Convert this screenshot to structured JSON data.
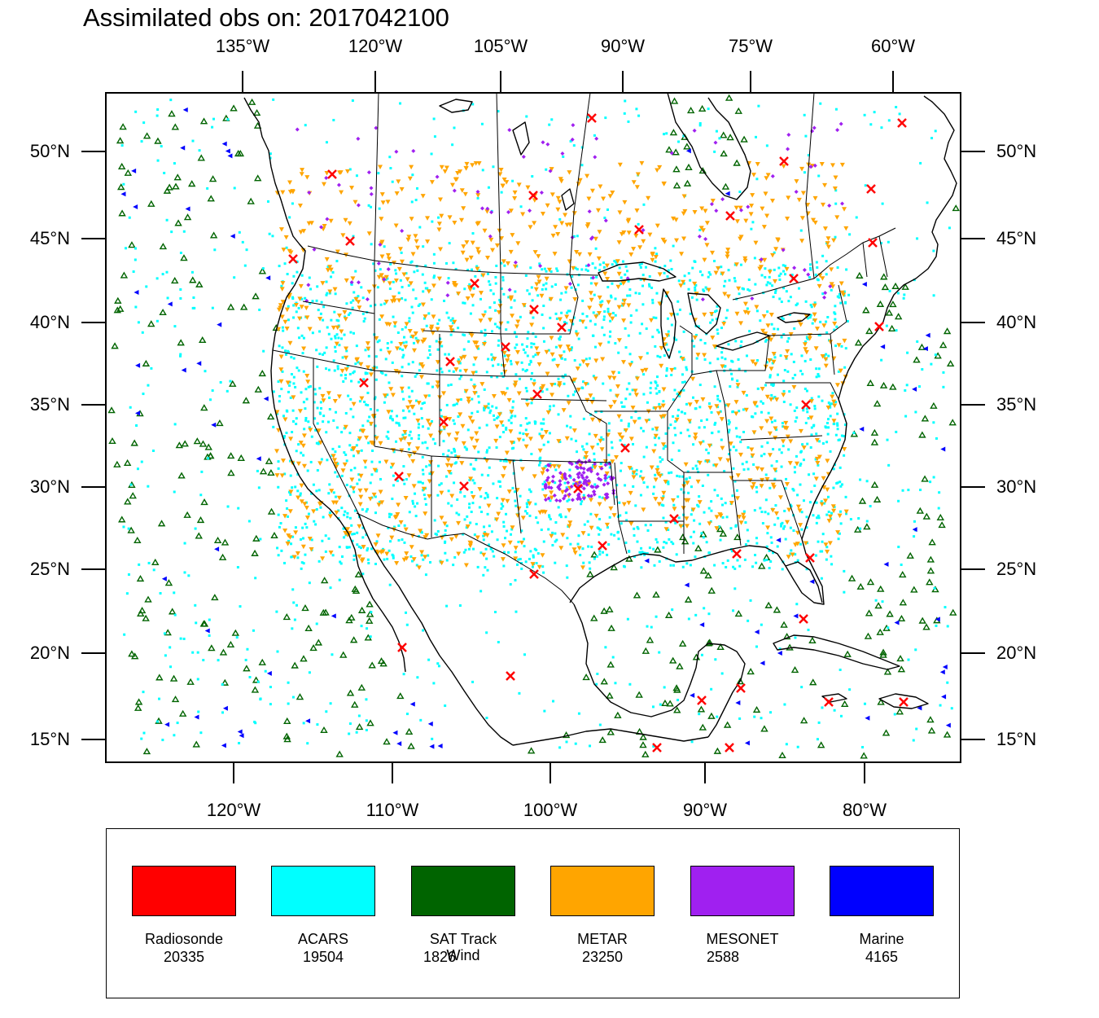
{
  "title": "Assimilated obs on: 2017042100",
  "top_lon_labels": [
    "135°W",
    "120°W",
    "105°W",
    "90°W",
    "75°W",
    "60°W"
  ],
  "bottom_lon_labels": [
    "120°W",
    "110°W",
    "100°W",
    "90°W",
    "80°W"
  ],
  "lat_labels": [
    "50°N",
    "45°N",
    "40°N",
    "35°N",
    "30°N",
    "25°N",
    "20°N",
    "15°N"
  ],
  "legend": [
    {
      "label": "Radiosonde",
      "count": "20335",
      "color": "#ff0000"
    },
    {
      "label": "ACARS",
      "count": "19504",
      "color": "#00ffff"
    },
    {
      "label": "SAT Track Wind",
      "count": "1826",
      "color": "#006400"
    },
    {
      "label": "METAR",
      "count": "23250",
      "color": "#ffa500"
    },
    {
      "label": "MESONET",
      "count": "2588",
      "color": "#a020f0"
    },
    {
      "label": "Marine",
      "count": "4165",
      "color": "#0000ff"
    }
  ],
  "colors": {
    "radiosonde": "#ff0000",
    "acars": "#00ffff",
    "sat": "#006400",
    "metar": "#ffa500",
    "mesonet": "#a020f0",
    "marine": "#0000ff"
  }
}
